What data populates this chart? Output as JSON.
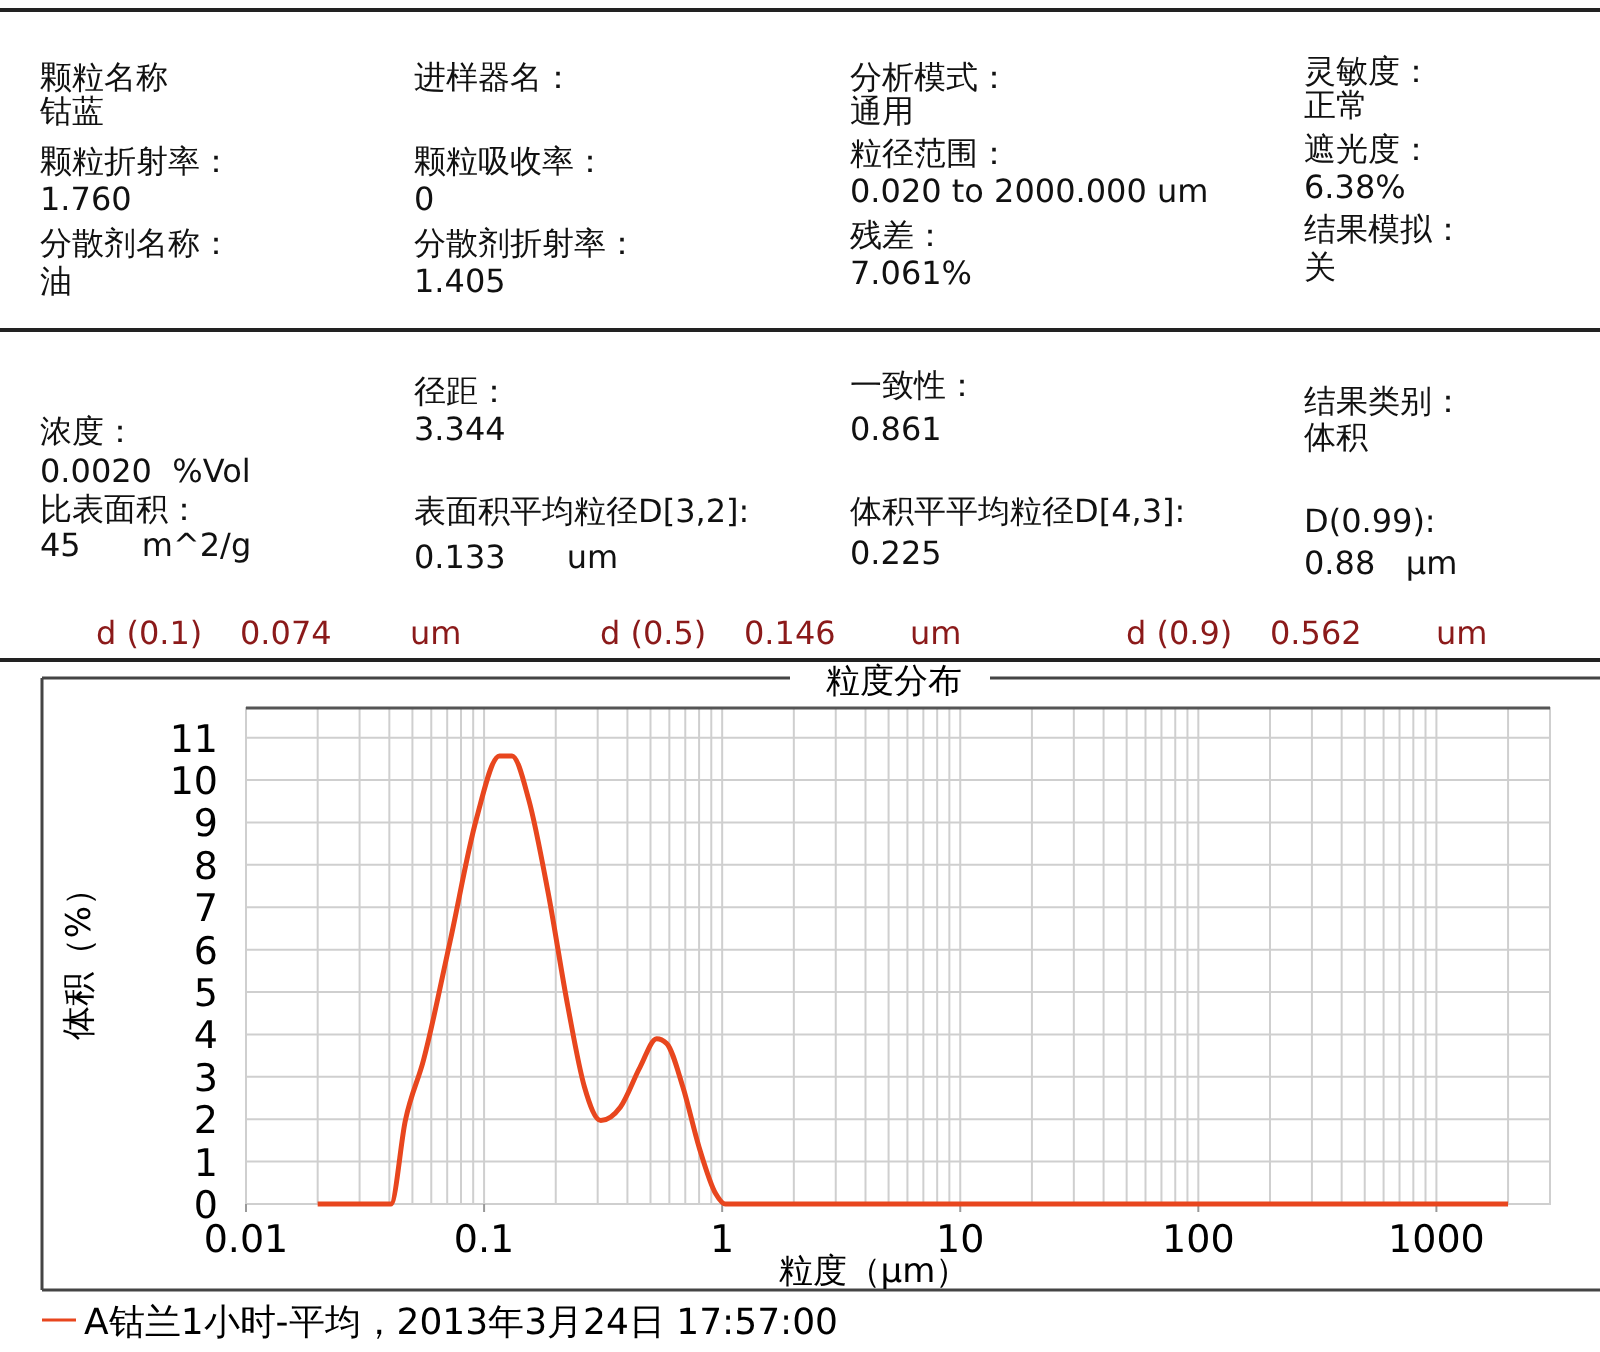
{
  "chart_data": [
    {
      "type": "other",
      "annotations": [
        "颗粒名称",
        "钴蓝",
        "颗粒折射率：",
        "1.760",
        "分散剂名称：",
        "油",
        "进样器名：",
        "颗粒吸收率：",
        "0",
        "分散剂折射率：",
        "1.405",
        "分析模式：",
        "通用",
        "粒径范围：",
        "0.020 to 2000.000 um",
        "残差：",
        "7.061%",
        "灵敏度：",
        "正常",
        "遮光度：",
        "6.38%",
        "结果模拟：",
        "关",
        "浓度：",
        "0.0020  %Vol",
        "比表面积：",
        "45      m^2/g",
        "径距：",
        "3.344",
        "表面积平均粒径D[3,2]:",
        "0.133      um",
        "一致性：",
        "0.861",
        "体积平平均粒径D[4,3]:",
        "0.225",
        "结果类别：",
        "体积",
        "D(0.99):",
        "0.88   μm",
        "d (0.1)",
        "0.074",
        "um",
        "d (0.5)",
        "0.146",
        "um",
        "d (0.9)",
        "0.562",
        "um"
      ]
    },
    {
      "type": "line",
      "title": "粒度分布",
      "xlabel": "粒度（μm）",
      "ylabel": "体积（%）",
      "log": "x",
      "xlim": [
        0.01,
        3000
      ],
      "xticks": [
        0.01,
        0.1,
        1,
        10,
        100,
        1000
      ],
      "ylim": [
        0,
        11.7
      ],
      "yticks": [
        0,
        1,
        2,
        3,
        4,
        5,
        6,
        7,
        8,
        9,
        10,
        11
      ],
      "grid": true,
      "legend": "bottom",
      "series": [
        {
          "name": "A钴兰1小时-平均，2013年3月24日 17:57:00",
          "color": "#e8461e",
          "x": [
            0.02,
            0.0406,
            0.0467,
            0.0557,
            0.072,
            0.0927,
            0.116,
            0.131,
            0.154,
            0.186,
            0.225,
            0.264,
            0.309,
            0.374,
            0.452,
            0.531,
            0.584,
            0.684,
            0.8,
            0.94,
            1.03,
            2000
          ],
          "values": [
            0,
            0,
            1.97,
            3.4,
            6.2,
            9.07,
            10.57,
            10.57,
            9.54,
            7.33,
            4.65,
            2.76,
            1.97,
            2.29,
            3.23,
            3.9,
            3.79,
            2.76,
            1.34,
            0.24,
            0,
            0
          ]
        }
      ]
    }
  ]
}
